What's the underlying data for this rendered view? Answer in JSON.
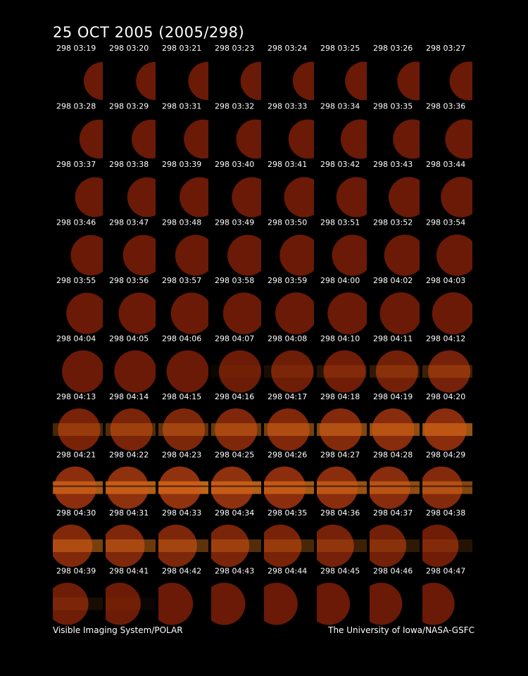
{
  "header": {
    "title": "25 OCT 2005  (2005/298)"
  },
  "frames": [
    "298 03:19",
    "298 03:20",
    "298 03:21",
    "298 03:23",
    "298 03:24",
    "298 03:25",
    "298 03:26",
    "298 03:27",
    "298 03:28",
    "298 03:29",
    "298 03:31",
    "298 03:32",
    "298 03:33",
    "298 03:34",
    "298 03:35",
    "298 03:36",
    "298 03:37",
    "298 03:38",
    "298 03:39",
    "298 03:40",
    "298 03:41",
    "298 03:42",
    "298 03:43",
    "298 03:44",
    "298 03:46",
    "298 03:47",
    "298 03:48",
    "298 03:49",
    "298 03:50",
    "298 03:51",
    "298 03:52",
    "298 03:54",
    "298 03:55",
    "298 03:56",
    "298 03:57",
    "298 03:58",
    "298 03:59",
    "298 04:00",
    "298 04:02",
    "298 04:03",
    "298 04:04",
    "298 04:05",
    "298 04:06",
    "298 04:07",
    "298 04:08",
    "298 04:10",
    "298 04:11",
    "298 04:12",
    "298 04:13",
    "298 04:14",
    "298 04:15",
    "298 04:16",
    "298 04:17",
    "298 04:18",
    "298 04:19",
    "298 04:20",
    "298 04:21",
    "298 04:22",
    "298 04:23",
    "298 04:25",
    "298 04:26",
    "298 04:27",
    "298 04:28",
    "298 04:29",
    "298 04:30",
    "298 04:31",
    "298 04:33",
    "298 04:34",
    "298 04:35",
    "298 04:36",
    "298 04:37",
    "298 04:38",
    "298 04:39",
    "298 04:41",
    "298 04:42",
    "298 04:43",
    "298 04:44",
    "298 04:45",
    "298 04:46",
    "298 04:47"
  ],
  "footer": {
    "left": "Visible Imaging System/POLAR",
    "right": "The University of Iowa/NASA-GSFC"
  }
}
